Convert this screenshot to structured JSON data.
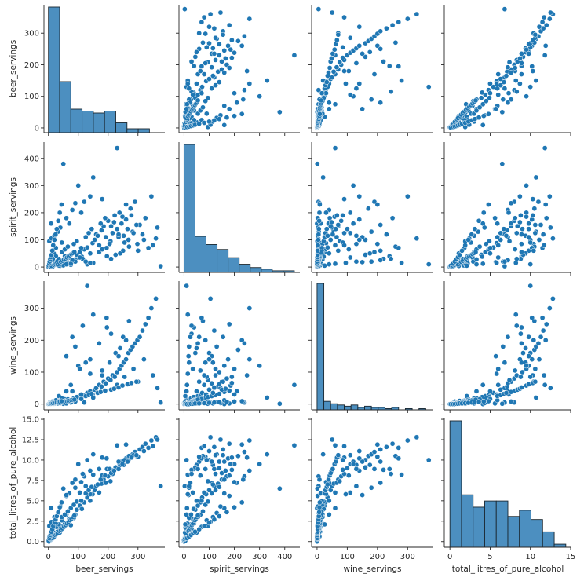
{
  "chart_data": {
    "type": "pairplot",
    "variables": [
      "beer_servings",
      "spirit_servings",
      "wine_servings",
      "total_litres_of_pure_alcohol"
    ],
    "color": "#1f77b4",
    "hist_color": "#4c8fc0",
    "axes": {
      "beer_servings": {
        "label": "beer_servings",
        "range": [
          -15,
          390
        ],
        "ticks": [
          0,
          100,
          200,
          300
        ],
        "tick_labels": [
          "0",
          "100",
          "200",
          "300"
        ]
      },
      "spirit_servings": {
        "label": "spirit_servings",
        "range": [
          -20,
          460
        ],
        "ticks": [
          0,
          100,
          200,
          300,
          400
        ],
        "tick_labels": [
          "0",
          "100",
          "200",
          "300",
          "400"
        ]
      },
      "wine_servings": {
        "label": "wine_servings",
        "range": [
          -18,
          385
        ],
        "ticks": [
          0,
          100,
          200,
          300
        ],
        "tick_labels": [
          "0",
          "100",
          "200",
          "300"
        ]
      },
      "total_litres_of_pure_alcohol": {
        "label": "total_litres_of_pure_alcohol",
        "range": [
          -0.7,
          15.1
        ],
        "ticks": [
          0,
          2.5,
          5.0,
          7.5,
          10.0,
          12.5,
          15.0
        ],
        "tick_labels": [
          "0.0",
          "2.5",
          "5.0",
          "7.5",
          "10.0",
          "12.5",
          "15.0"
        ],
        "x_ticks": [
          0,
          5,
          10,
          15
        ],
        "x_tick_labels": [
          "0",
          "5",
          "10",
          "15"
        ]
      }
    },
    "histograms": {
      "beer_servings": {
        "bin_edges": [
          0,
          37.6,
          75.2,
          112.8,
          150.4,
          188,
          225.6,
          263.2,
          300.8,
          338.4,
          376
        ],
        "counts": [
          64,
          26,
          12,
          11,
          10,
          11,
          5,
          2,
          2,
          0
        ]
      },
      "spirit_servings": {
        "bin_edges": [
          0,
          43.8,
          87.6,
          131.4,
          175.2,
          219,
          262.8,
          306.6,
          350.4,
          394.2,
          438
        ],
        "counts": [
          78,
          22,
          17,
          14,
          9,
          5,
          3,
          2,
          1,
          1
        ]
      },
      "wine_servings": {
        "bin_edges": [
          0,
          22.5,
          45,
          67.5,
          90,
          112.5,
          135,
          157.5,
          180,
          202.5,
          225,
          247.5,
          270,
          292.5,
          315,
          337.5,
          360
        ],
        "counts": [
          104,
          7,
          5,
          4,
          3,
          4,
          2,
          3,
          2,
          2,
          1,
          2,
          0,
          1,
          0,
          1
        ]
      },
      "total_litres_of_pure_alcohol": {
        "bin_edges": [
          0,
          1.44,
          2.88,
          4.32,
          5.76,
          7.2,
          8.64,
          10.08,
          11.52,
          12.96,
          14.4
        ],
        "counts": [
          41,
          17,
          13,
          15,
          15,
          10,
          12,
          9,
          5,
          1
        ]
      }
    },
    "points": [
      [
        5,
        10,
        5,
        0.5
      ],
      [
        12,
        6,
        8,
        0.6
      ],
      [
        22,
        15,
        4,
        0.9
      ],
      [
        30,
        22,
        10,
        1.2
      ],
      [
        40,
        18,
        7,
        1.5
      ],
      [
        8,
        3,
        1,
        0.2
      ],
      [
        15,
        25,
        3,
        0.8
      ],
      [
        35,
        30,
        6,
        1.6
      ],
      [
        48,
        12,
        12,
        1.9
      ],
      [
        55,
        40,
        15,
        2.3
      ],
      [
        60,
        25,
        9,
        2.1
      ],
      [
        70,
        35,
        11,
        2.8
      ],
      [
        18,
        50,
        2,
        1.1
      ],
      [
        25,
        70,
        5,
        1.8
      ],
      [
        45,
        90,
        8,
        2.6
      ],
      [
        3,
        95,
        1,
        1.9
      ],
      [
        10,
        105,
        4,
        2.4
      ],
      [
        20,
        115,
        2,
        3.0
      ],
      [
        32,
        130,
        6,
        3.5
      ],
      [
        9,
        160,
        0,
        4.1
      ],
      [
        2,
        0,
        0,
        0.0
      ],
      [
        0,
        1,
        0,
        0.1
      ],
      [
        6,
        0,
        2,
        0.2
      ],
      [
        1,
        5,
        0,
        0.1
      ],
      [
        14,
        2,
        3,
        0.4
      ],
      [
        28,
        8,
        6,
        1.0
      ],
      [
        38,
        4,
        2,
        1.1
      ],
      [
        50,
        6,
        10,
        1.7
      ],
      [
        65,
        14,
        14,
        2.2
      ],
      [
        75,
        8,
        5,
        2.0
      ],
      [
        85,
        20,
        13,
        2.9
      ],
      [
        90,
        28,
        18,
        3.3
      ],
      [
        95,
        45,
        20,
        3.9
      ],
      [
        105,
        55,
        25,
        4.4
      ],
      [
        112,
        38,
        22,
        4.0
      ],
      [
        120,
        65,
        28,
        4.8
      ],
      [
        130,
        72,
        35,
        5.4
      ],
      [
        140,
        50,
        40,
        5.0
      ],
      [
        148,
        88,
        30,
        5.8
      ],
      [
        155,
        100,
        45,
        6.3
      ],
      [
        160,
        120,
        50,
        6.8
      ],
      [
        170,
        80,
        60,
        6.0
      ],
      [
        178,
        135,
        55,
        7.1
      ],
      [
        185,
        150,
        70,
        7.6
      ],
      [
        192,
        110,
        65,
        7.2
      ],
      [
        200,
        170,
        80,
        8.0
      ],
      [
        208,
        95,
        75,
        7.4
      ],
      [
        215,
        125,
        90,
        8.3
      ],
      [
        222,
        190,
        85,
        8.8
      ],
      [
        230,
        140,
        100,
        9.0
      ],
      [
        238,
        200,
        110,
        9.5
      ],
      [
        245,
        160,
        120,
        9.8
      ],
      [
        252,
        115,
        130,
        9.4
      ],
      [
        260,
        175,
        140,
        10.2
      ],
      [
        268,
        100,
        160,
        10.0
      ],
      [
        275,
        215,
        170,
        10.5
      ],
      [
        282,
        130,
        180,
        10.7
      ],
      [
        290,
        240,
        190,
        11.0
      ],
      [
        298,
        85,
        200,
        10.4
      ],
      [
        306,
        155,
        210,
        11.3
      ],
      [
        315,
        120,
        230,
        11.6
      ],
      [
        325,
        180,
        250,
        12.0
      ],
      [
        335,
        70,
        270,
        11.5
      ],
      [
        345,
        260,
        300,
        12.4
      ],
      [
        360,
        105,
        330,
        12.8
      ],
      [
        376,
        3,
        5,
        6.8
      ],
      [
        230,
        438,
        60,
        11.8
      ],
      [
        50,
        380,
        1,
        6.5
      ],
      [
        140,
        260,
        140,
        8.7
      ],
      [
        100,
        300,
        120,
        9.5
      ],
      [
        80,
        210,
        40,
        7.2
      ],
      [
        120,
        240,
        5,
        8.0
      ],
      [
        60,
        180,
        2,
        5.6
      ],
      [
        40,
        145,
        3,
        4.3
      ],
      [
        70,
        160,
        12,
        5.9
      ],
      [
        110,
        200,
        30,
        7.3
      ],
      [
        90,
        235,
        8,
        7.6
      ],
      [
        150,
        330,
        20,
        10.7
      ],
      [
        180,
        250,
        90,
        10.3
      ],
      [
        260,
        230,
        200,
        11.9
      ],
      [
        196,
        40,
        240,
        8.9
      ],
      [
        250,
        60,
        210,
        9.8
      ],
      [
        150,
        15,
        280,
        8.2
      ],
      [
        130,
        10,
        370,
        10.0
      ],
      [
        210,
        30,
        220,
        8.8
      ],
      [
        240,
        50,
        175,
        9.4
      ],
      [
        270,
        75,
        260,
        10.5
      ],
      [
        90,
        20,
        180,
        6.6
      ],
      [
        80,
        25,
        210,
        7.2
      ],
      [
        60,
        18,
        150,
        5.7
      ],
      [
        225,
        45,
        160,
        9.1
      ],
      [
        195,
        70,
        270,
        10.2
      ],
      [
        115,
        30,
        245,
        8.3
      ],
      [
        170,
        55,
        190,
        8.9
      ],
      [
        125,
        20,
        130,
        6.8
      ],
      [
        105,
        35,
        110,
        6.0
      ],
      [
        140,
        15,
        95,
        5.8
      ],
      [
        60,
        10,
        40,
        3.3
      ],
      [
        75,
        12,
        60,
        4.1
      ],
      [
        35,
        5,
        25,
        2.1
      ],
      [
        180,
        65,
        105,
        8.1
      ],
      [
        205,
        85,
        130,
        8.9
      ],
      [
        235,
        110,
        150,
        9.8
      ],
      [
        255,
        90,
        85,
        10.0
      ],
      [
        285,
        125,
        110,
        10.6
      ],
      [
        300,
        60,
        70,
        10.4
      ],
      [
        320,
        100,
        140,
        11.1
      ],
      [
        350,
        80,
        90,
        11.7
      ],
      [
        365,
        145,
        50,
        12.5
      ],
      [
        45,
        55,
        18,
        3.0
      ],
      [
        25,
        40,
        12,
        2.2
      ],
      [
        15,
        30,
        8,
        1.6
      ],
      [
        55,
        65,
        10,
        3.3
      ],
      [
        65,
        75,
        15,
        3.7
      ],
      [
        85,
        85,
        18,
        4.5
      ],
      [
        95,
        95,
        22,
        4.9
      ],
      [
        110,
        70,
        16,
        5.0
      ],
      [
        125,
        110,
        25,
        5.9
      ],
      [
        135,
        125,
        28,
        6.3
      ],
      [
        145,
        140,
        32,
        6.7
      ],
      [
        165,
        115,
        35,
        7.0
      ],
      [
        175,
        160,
        38,
        7.6
      ],
      [
        190,
        180,
        42,
        8.1
      ],
      [
        210,
        150,
        45,
        8.4
      ],
      [
        220,
        165,
        48,
        8.7
      ],
      [
        235,
        120,
        52,
        8.9
      ],
      [
        248,
        185,
        58,
        9.5
      ],
      [
        265,
        140,
        62,
        9.8
      ],
      [
        278,
        190,
        66,
        10.3
      ],
      [
        295,
        155,
        70,
        10.6
      ],
      [
        7,
        2,
        0,
        0.3
      ],
      [
        11,
        4,
        1,
        0.4
      ],
      [
        19,
        7,
        1,
        0.6
      ],
      [
        23,
        11,
        2,
        0.8
      ],
      [
        27,
        13,
        3,
        0.9
      ],
      [
        31,
        9,
        2,
        1.0
      ],
      [
        37,
        16,
        4,
        1.3
      ],
      [
        42,
        19,
        5,
        1.4
      ],
      [
        47,
        23,
        6,
        1.6
      ],
      [
        52,
        27,
        7,
        1.8
      ],
      [
        57,
        31,
        8,
        2.0
      ],
      [
        62,
        35,
        9,
        2.2
      ],
      [
        67,
        39,
        10,
        2.4
      ],
      [
        72,
        43,
        11,
        2.6
      ],
      [
        77,
        47,
        12,
        2.8
      ],
      [
        82,
        51,
        13,
        3.0
      ],
      [
        87,
        55,
        14,
        3.2
      ],
      [
        3,
        12,
        0,
        0.4
      ],
      [
        4,
        20,
        0,
        0.6
      ],
      [
        6,
        28,
        1,
        0.8
      ],
      [
        8,
        36,
        1,
        1.0
      ],
      [
        10,
        44,
        2,
        1.2
      ],
      [
        13,
        60,
        2,
        1.5
      ],
      [
        16,
        80,
        3,
        1.9
      ],
      [
        20,
        100,
        4,
        2.3
      ],
      [
        24,
        120,
        5,
        2.7
      ],
      [
        28,
        140,
        6,
        3.1
      ],
      [
        33,
        170,
        7,
        3.6
      ],
      [
        38,
        200,
        8,
        4.2
      ],
      [
        44,
        230,
        9,
        4.8
      ]
    ]
  }
}
